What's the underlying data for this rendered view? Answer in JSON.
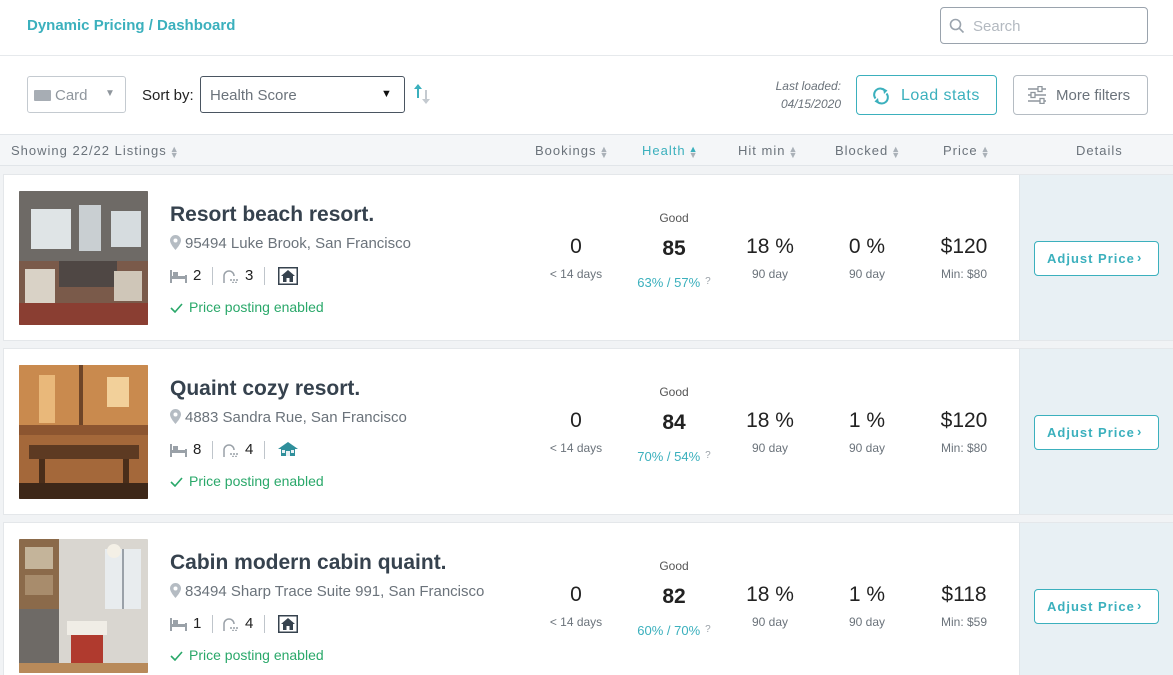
{
  "header": {
    "breadcrumb": "Dynamic Pricing / Dashboard",
    "search_placeholder": "Search"
  },
  "toolbar": {
    "view_label": "Card",
    "sort_by_label": "Sort by:",
    "sort_value": "Health Score",
    "last_loaded_label": "Last loaded:",
    "last_loaded_date": "04/15/2020",
    "load_stats_label": "Load stats",
    "more_filters_label": "More filters"
  },
  "columns": {
    "showing": "Showing 22/22 Listings",
    "bookings": "Bookings",
    "health": "Health",
    "hit_min": "Hit min",
    "blocked": "Blocked",
    "price": "Price",
    "details": "Details"
  },
  "colors": {
    "accent": "#3bb0bd",
    "success": "#2aa86a",
    "detail_pane": "#e8f0f4"
  },
  "listings": [
    {
      "title": "Resort beach resort.",
      "address": "95494 Luke Brook, San Francisco",
      "beds": "2",
      "baths": "3",
      "property_icon": "house-icon",
      "posting": "Price posting enabled",
      "bookings": "0",
      "bookings_sub": "< 14 days",
      "health_label": "Good",
      "health_score": "85",
      "health_pct": "63% / 57%",
      "hit_min": "18 %",
      "hit_min_sub": "90 day",
      "blocked": "0 %",
      "blocked_sub": "90 day",
      "price": "$120",
      "price_min": "Min: $80",
      "adjust_label": "Adjust Price"
    },
    {
      "title": "Quaint cozy resort.",
      "address": "4883 Sandra Rue, San Francisco",
      "beds": "8",
      "baths": "4",
      "property_icon": "villa-icon",
      "posting": "Price posting enabled",
      "bookings": "0",
      "bookings_sub": "< 14 days",
      "health_label": "Good",
      "health_score": "84",
      "health_pct": "70% / 54%",
      "hit_min": "18 %",
      "hit_min_sub": "90 day",
      "blocked": "1 %",
      "blocked_sub": "90 day",
      "price": "$120",
      "price_min": "Min: $80",
      "adjust_label": "Adjust Price"
    },
    {
      "title": "Cabin modern cabin quaint.",
      "address": "83494 Sharp Trace Suite 991, San Francisco",
      "beds": "1",
      "baths": "4",
      "property_icon": "house-icon",
      "posting": "Price posting enabled",
      "bookings": "0",
      "bookings_sub": "< 14 days",
      "health_label": "Good",
      "health_score": "82",
      "health_pct": "60% / 70%",
      "hit_min": "18 %",
      "hit_min_sub": "90 day",
      "blocked": "1 %",
      "blocked_sub": "90 day",
      "price": "$118",
      "price_min": "Min: $59",
      "adjust_label": "Adjust Price"
    }
  ]
}
